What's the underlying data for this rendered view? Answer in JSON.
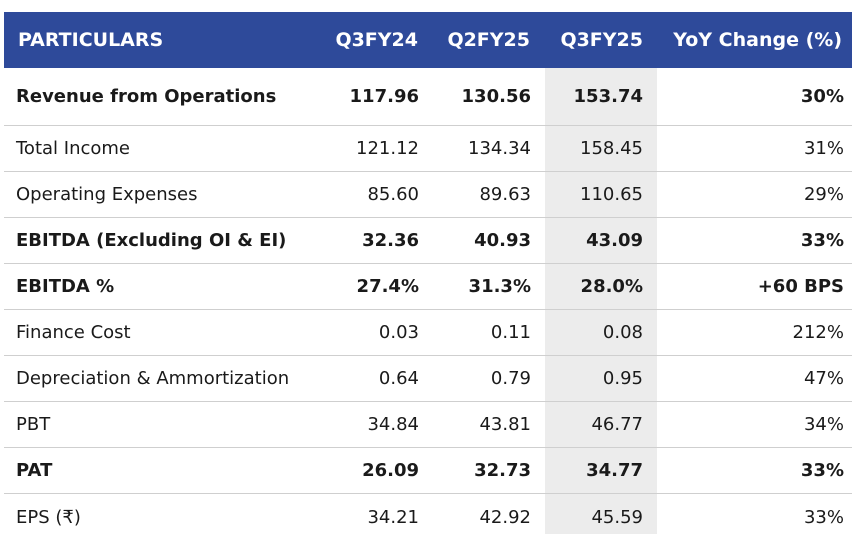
{
  "header": [
    "PARTICULARS",
    "Q3FY24",
    "Q2FY25",
    "Q3FY25",
    "YoY Change (%)"
  ],
  "rows": [
    {
      "label": "Revenue from Operations",
      "q3fy24": "117.96",
      "q2fy25": "130.56",
      "q3fy25": "153.74",
      "yoy": "30%",
      "bold": true
    },
    {
      "label": "Total Income",
      "q3fy24": "121.12",
      "q2fy25": "134.34",
      "q3fy25": "158.45",
      "yoy": "31%",
      "bold": false
    },
    {
      "label": "Operating Expenses",
      "q3fy24": "85.60",
      "q2fy25": "89.63",
      "q3fy25": "110.65",
      "yoy": "29%",
      "bold": false
    },
    {
      "label": "EBITDA (Excluding OI & EI)",
      "q3fy24": "32.36",
      "q2fy25": "40.93",
      "q3fy25": "43.09",
      "yoy": "33%",
      "bold": true
    },
    {
      "label": "EBITDA %",
      "q3fy24": "27.4%",
      "q2fy25": "31.3%",
      "q3fy25": "28.0%",
      "yoy": "+60 BPS",
      "bold": true
    },
    {
      "label": "Finance Cost",
      "q3fy24": "0.03",
      "q2fy25": "0.11",
      "q3fy25": "0.08",
      "yoy": "212%",
      "bold": false
    },
    {
      "label": "Depreciation & Ammortization",
      "q3fy24": "0.64",
      "q2fy25": "0.79",
      "q3fy25": "0.95",
      "yoy": "47%",
      "bold": false
    },
    {
      "label": "PBT",
      "q3fy24": "34.84",
      "q2fy25": "43.81",
      "q3fy25": "46.77",
      "yoy": "34%",
      "bold": false
    },
    {
      "label": "PAT",
      "q3fy24": "26.09",
      "q2fy25": "32.73",
      "q3fy25": "34.77",
      "yoy": "33%",
      "bold": true
    },
    {
      "label": "EPS (₹)",
      "q3fy24": "34.21",
      "q2fy25": "42.92",
      "q3fy25": "45.59",
      "yoy": "33%",
      "bold": false
    }
  ],
  "colors": {
    "header_bg": "#2e4a9a",
    "header_text": "#ffffff",
    "highlight_column": "#ececec",
    "row_divider": "#cfcfcf"
  }
}
